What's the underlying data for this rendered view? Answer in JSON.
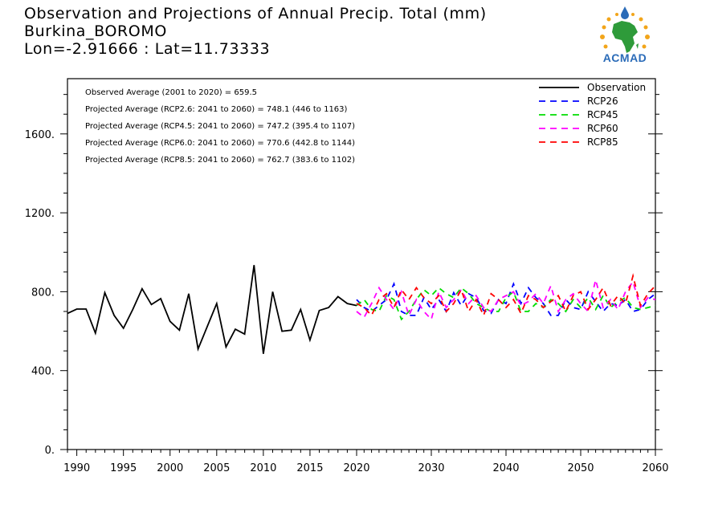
{
  "title": {
    "line1": "Observation and Projections of Annual Precip. Total (mm)",
    "line2": "Burkina_BOROMO",
    "line3": "Lon=-2.91666 : Lat=11.73333"
  },
  "logo": {
    "text": "ACMAD"
  },
  "annotations": [
    "Observed Average (2001 to 2020) = 659.5",
    "Projected Average (RCP2.6: 2041 to 2060) = 748.1 (446 to 1163)",
    "Projected Average (RCP4.5: 2041 to 2060) = 747.2 (395.4 to 1107)",
    "Projected Average (RCP6.0: 2041 to 2060) = 770.6 (442.8 to 1144)",
    "Projected Average (RCP8.5: 2041 to 2060) = 762.7 (383.6 to 1102)"
  ],
  "colors": {
    "Observation": "#000000",
    "RCP26": "#0000ff",
    "RCP45": "#00dd00",
    "RCP60": "#ff00ff",
    "RCP85": "#ff0000"
  },
  "chart_data": {
    "type": "line",
    "xlim": [
      1989,
      2060
    ],
    "ylim": [
      0,
      1880
    ],
    "x_ticks": [
      "1990",
      "1995",
      "2000",
      "2005",
      "2010",
      "2015",
      "2020",
      "2030",
      "2040",
      "2050",
      "2060"
    ],
    "x_tick_values": [
      1990,
      1995,
      2000,
      2005,
      2010,
      2015,
      2020,
      2030,
      2040,
      2050,
      2060
    ],
    "y_ticks": [
      "0.",
      "400.",
      "800.",
      "1200.",
      "1600."
    ],
    "y_tick_values": [
      0,
      400,
      800,
      1200,
      1600
    ],
    "legend_position": "top-right",
    "series": [
      {
        "name": "Observation",
        "style": "solid",
        "x": [
          1989,
          1990,
          1991,
          1992,
          1993,
          1994,
          1995,
          1996,
          1997,
          1998,
          1999,
          2000,
          2001,
          2002,
          2003,
          2004,
          2005,
          2006,
          2007,
          2008,
          2009,
          2010,
          2011,
          2012,
          2013,
          2014,
          2015,
          2016,
          2017,
          2018,
          2019,
          2020
        ],
        "values": [
          690,
          712,
          712,
          590,
          795,
          680,
          615,
          710,
          815,
          735,
          765,
          650,
          605,
          790,
          510,
          625,
          740,
          520,
          610,
          585,
          935,
          485,
          800,
          600,
          605,
          710,
          555,
          705,
          720,
          775,
          740,
          730
        ]
      },
      {
        "name": "RCP26",
        "style": "dashed",
        "x": [
          2020,
          2021,
          2022,
          2023,
          2024,
          2025,
          2026,
          2027,
          2028,
          2029,
          2030,
          2031,
          2032,
          2033,
          2034,
          2035,
          2036,
          2037,
          2038,
          2039,
          2040,
          2041,
          2042,
          2043,
          2044,
          2045,
          2046,
          2047,
          2048,
          2049,
          2050,
          2051,
          2052,
          2053,
          2054,
          2055,
          2056,
          2057,
          2058,
          2059,
          2060
        ],
        "values": [
          760,
          720,
          700,
          730,
          760,
          840,
          700,
          680,
          680,
          770,
          710,
          760,
          700,
          795,
          730,
          790,
          770,
          705,
          690,
          760,
          740,
          840,
          740,
          820,
          770,
          740,
          680,
          680,
          760,
          720,
          710,
          800,
          750,
          700,
          740,
          730,
          760,
          700,
          710,
          760,
          790
        ]
      },
      {
        "name": "RCP45",
        "style": "dashed",
        "x": [
          2020,
          2021,
          2022,
          2023,
          2024,
          2025,
          2026,
          2027,
          2028,
          2029,
          2030,
          2031,
          2032,
          2033,
          2034,
          2035,
          2036,
          2037,
          2038,
          2039,
          2040,
          2041,
          2042,
          2043,
          2044,
          2045,
          2046,
          2047,
          2048,
          2049,
          2050,
          2051,
          2052,
          2053,
          2054,
          2055,
          2056,
          2057,
          2058,
          2059,
          2060
        ],
        "values": [
          730,
          760,
          710,
          700,
          780,
          760,
          660,
          700,
          760,
          810,
          780,
          820,
          790,
          770,
          820,
          790,
          740,
          720,
          700,
          700,
          770,
          800,
          700,
          700,
          740,
          720,
          760,
          740,
          700,
          760,
          720,
          770,
          710,
          780,
          720,
          750,
          770,
          720,
          710,
          720,
          730
        ]
      },
      {
        "name": "RCP60",
        "style": "dashed",
        "x": [
          2020,
          2021,
          2022,
          2023,
          2024,
          2025,
          2026,
          2027,
          2028,
          2029,
          2030,
          2031,
          2032,
          2033,
          2034,
          2035,
          2036,
          2037,
          2038,
          2039,
          2040,
          2041,
          2042,
          2043,
          2044,
          2045,
          2046,
          2047,
          2048,
          2049,
          2050,
          2051,
          2052,
          2053,
          2054,
          2055,
          2056,
          2057,
          2058,
          2059,
          2060
        ],
        "values": [
          700,
          670,
          740,
          820,
          760,
          710,
          800,
          680,
          760,
          700,
          660,
          800,
          720,
          760,
          810,
          740,
          780,
          720,
          700,
          760,
          780,
          800,
          730,
          750,
          790,
          740,
          830,
          700,
          760,
          790,
          740,
          700,
          860,
          720,
          760,
          710,
          800,
          850,
          720,
          770,
          760
        ]
      },
      {
        "name": "RCP85",
        "style": "dashed",
        "x": [
          2020,
          2021,
          2022,
          2023,
          2024,
          2025,
          2026,
          2027,
          2028,
          2029,
          2030,
          2031,
          2032,
          2033,
          2034,
          2035,
          2036,
          2037,
          2038,
          2039,
          2040,
          2041,
          2042,
          2043,
          2044,
          2045,
          2046,
          2047,
          2048,
          2049,
          2050,
          2051,
          2052,
          2053,
          2054,
          2055,
          2056,
          2057,
          2058,
          2059,
          2060
        ],
        "values": [
          740,
          720,
          680,
          760,
          790,
          720,
          810,
          760,
          820,
          770,
          740,
          780,
          700,
          740,
          810,
          700,
          760,
          680,
          790,
          760,
          720,
          760,
          690,
          780,
          760,
          720,
          750,
          780,
          700,
          780,
          800,
          710,
          760,
          820,
          730,
          780,
          740,
          880,
          730,
          790,
          830
        ]
      }
    ]
  }
}
